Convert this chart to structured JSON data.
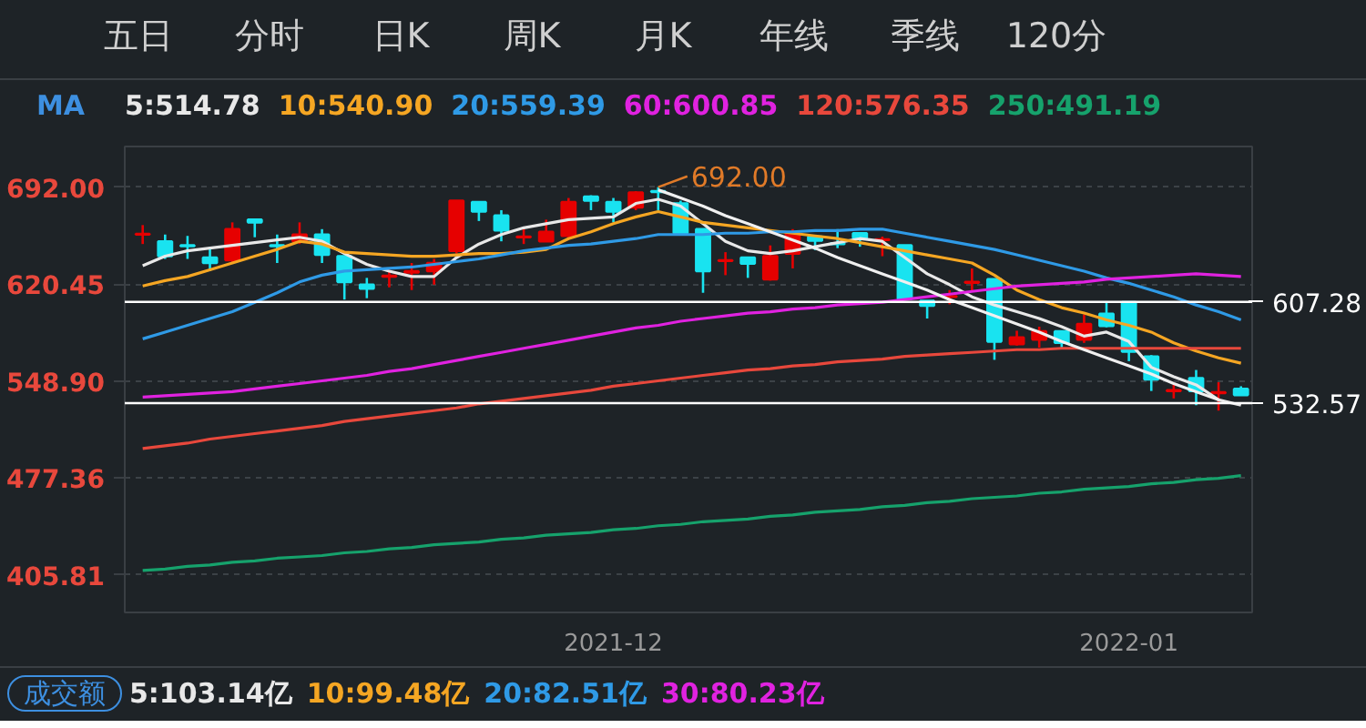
{
  "chart_data": {
    "type": "candlestick",
    "categories": [
      null,
      null,
      null,
      null,
      null,
      null,
      null,
      null,
      null,
      null,
      null,
      null,
      null,
      null,
      null,
      null,
      null,
      null,
      null,
      null,
      null,
      "2021-12",
      null,
      null,
      null,
      null,
      null,
      null,
      null,
      null,
      null,
      null,
      null,
      null,
      null,
      null,
      null,
      null,
      null,
      null,
      null,
      null,
      null,
      null,
      "2022-01",
      null,
      null,
      null,
      null,
      null
    ],
    "ohlc": [
      [
        657,
        664,
        650,
        657.5
      ],
      [
        652,
        657,
        639,
        641
      ],
      [
        649,
        656,
        639,
        648.5
      ],
      [
        640,
        648,
        630,
        636
      ],
      [
        638,
        666,
        636,
        661
      ],
      [
        668,
        668,
        655,
        666
      ],
      [
        649,
        657,
        636,
        648.5
      ],
      [
        652,
        666,
        650,
        657
      ],
      [
        657,
        661,
        636,
        642
      ],
      [
        641,
        641,
        609,
        622
      ],
      [
        620,
        625,
        610,
        617
      ],
      [
        626,
        632,
        618,
        626.5
      ],
      [
        629,
        636,
        616,
        630
      ],
      [
        630,
        639,
        620,
        636
      ],
      [
        645,
        682,
        643,
        682
      ],
      [
        681,
        681,
        667,
        674
      ],
      [
        671,
        675,
        652,
        660
      ],
      [
        655,
        661,
        650,
        655.5
      ],
      [
        652,
        668,
        652,
        659
      ],
      [
        656,
        684,
        655,
        681
      ],
      [
        685,
        686,
        675,
        682
      ],
      [
        681,
        684,
        666,
        674
      ],
      [
        677,
        689,
        675,
        688
      ],
      [
        689,
        692,
        675,
        688.5
      ],
      [
        680,
        682,
        657,
        658
      ],
      [
        661,
        661,
        614,
        630
      ],
      [
        637.5,
        644,
        627,
        638
      ],
      [
        640,
        640,
        625,
        635.5
      ],
      [
        624,
        649,
        623,
        641
      ],
      [
        643,
        661,
        632,
        658
      ],
      [
        655.5,
        655.5,
        645.5,
        652.5
      ],
      [
        650.5,
        661,
        647,
        650
      ],
      [
        658,
        658,
        648,
        654.5
      ],
      [
        653,
        655.5,
        641,
        653.5
      ],
      [
        649,
        649,
        609,
        609.5
      ],
      [
        608,
        608,
        595,
        604.5
      ],
      [
        611,
        616,
        605.5,
        611.5
      ],
      [
        621.5,
        632,
        614.5,
        622
      ],
      [
        624,
        624,
        564.5,
        578
      ],
      [
        576,
        586,
        575,
        581
      ],
      [
        579.5,
        589,
        573.5,
        585.5
      ],
      [
        585.5,
        586,
        572.5,
        577
      ],
      [
        579.5,
        598,
        577,
        591
      ],
      [
        598.5,
        607,
        588.5,
        589.5
      ],
      [
        607,
        607,
        563.5,
        570.5
      ],
      [
        567,
        568,
        541.5,
        550
      ],
      [
        541.5,
        546,
        536,
        542
      ],
      [
        551,
        557,
        531,
        541.5
      ],
      [
        540,
        548,
        527,
        540.5
      ],
      [
        543,
        545,
        538,
        538.5
      ]
    ],
    "colors": [
      "#e60000",
      "#19e3f0",
      "#19e3f0",
      "#19e3f0",
      "#e60000",
      "#19e3f0",
      "#19e3f0",
      "#e60000",
      "#19e3f0",
      "#19e3f0",
      "#19e3f0",
      "#e60000",
      "#e60000",
      "#e60000",
      "#e60000",
      "#19e3f0",
      "#19e3f0",
      "#e60000",
      "#e60000",
      "#e60000",
      "#19e3f0",
      "#19e3f0",
      "#e60000",
      "#19e3f0",
      "#19e3f0",
      "#19e3f0",
      "#e60000",
      "#19e3f0",
      "#e60000",
      "#e60000",
      "#19e3f0",
      "#19e3f0",
      "#19e3f0",
      "#e60000",
      "#19e3f0",
      "#19e3f0",
      "#e60000",
      "#e60000",
      "#19e3f0",
      "#e60000",
      "#e60000",
      "#19e3f0",
      "#e60000",
      "#19e3f0",
      "#19e3f0",
      "#19e3f0",
      "#e60000",
      "#19e3f0",
      "#e60000",
      "#19e3f0"
    ],
    "series": [
      {
        "type": "line",
        "name": "5:514.78",
        "color": "#e8e8e8",
        "values": [
          634,
          641,
          645,
          647,
          649,
          651,
          653,
          655,
          652,
          643,
          635,
          630,
          626,
          626,
          640,
          650,
          657,
          662,
          665,
          668,
          669,
          670,
          680,
          683,
          678,
          665,
          652,
          645,
          643,
          645,
          648,
          651,
          654,
          652,
          640,
          628,
          620,
          611,
          605,
          600,
          595,
          589,
          582,
          585,
          578,
          559,
          552,
          546,
          535,
          531
        ]
      },
      {
        "type": "line",
        "name": "10:540.90",
        "color": "#f5a623",
        "values": [
          619,
          623,
          626,
          631,
          636,
          641,
          646,
          652,
          650,
          644,
          643,
          642,
          641,
          641,
          642,
          643,
          643,
          644,
          646,
          654,
          659,
          665,
          670,
          674,
          670,
          666,
          664,
          662,
          660,
          658,
          656,
          654,
          651,
          648,
          645,
          642,
          639,
          636,
          627,
          616,
          609,
          603,
          599,
          594,
          590,
          585,
          577,
          571,
          566,
          562
        ]
      },
      {
        "type": "line",
        "name": "20:559.39",
        "color": "#2f9ae6",
        "values": [
          580,
          585,
          590,
          595,
          600,
          607,
          614,
          622,
          627,
          630,
          631,
          632,
          633,
          635,
          637,
          639,
          642,
          645,
          647,
          649,
          650,
          652,
          654,
          657,
          657,
          657,
          658,
          658,
          659,
          659,
          660,
          660,
          661,
          661,
          658,
          655,
          652,
          649,
          646,
          642,
          638,
          634,
          630,
          625,
          621,
          616,
          611,
          605,
          600,
          594
        ]
      },
      {
        "type": "line",
        "name": "60:600.85",
        "color": "#e022e0",
        "values": [
          537,
          538,
          539,
          540,
          541,
          543,
          545,
          547,
          549,
          551,
          553,
          556,
          558,
          561,
          564,
          567,
          570,
          573,
          576,
          579,
          582,
          585,
          588,
          590,
          593,
          595,
          597,
          599,
          600,
          602,
          603,
          605,
          606,
          607,
          609,
          611,
          613,
          615,
          617,
          619,
          620,
          621,
          622,
          624,
          625,
          626,
          627,
          628,
          627,
          626
        ]
      },
      {
        "type": "line",
        "name": "120:576.35",
        "color": "#e8483c",
        "values": [
          499,
          501,
          503,
          506,
          508,
          510,
          512,
          514,
          516,
          519,
          521,
          523,
          525,
          527,
          529,
          532,
          534,
          536,
          538,
          540,
          542,
          545,
          547,
          549,
          551,
          553,
          555,
          557,
          558,
          560,
          561,
          563,
          564,
          565,
          567,
          568,
          569,
          570,
          571,
          572,
          572,
          573,
          573,
          573,
          573,
          573,
          573,
          573,
          573,
          573
        ]
      },
      {
        "type": "line",
        "name": "250:491.19",
        "color": "#16a26c",
        "values": [
          409,
          410,
          412,
          413,
          415,
          416,
          418,
          419,
          420,
          422,
          423,
          425,
          426,
          428,
          429,
          430,
          432,
          433,
          435,
          436,
          437,
          439,
          440,
          442,
          443,
          445,
          446,
          447,
          449,
          450,
          452,
          453,
          454,
          456,
          457,
          459,
          460,
          462,
          463,
          464,
          466,
          467,
          469,
          470,
          471,
          473,
          474,
          476,
          477,
          479
        ]
      },
      {
        "type": "line",
        "color": "#f0f0f0",
        "values": [
          null,
          null,
          null,
          null,
          null,
          null,
          null,
          null,
          null,
          null,
          null,
          null,
          null,
          null,
          null,
          null,
          null,
          null,
          null,
          null,
          null,
          null,
          null,
          690,
          684,
          678,
          671,
          665,
          659,
          653,
          647,
          640,
          634,
          628,
          622,
          616,
          609,
          603,
          597,
          591,
          585,
          578,
          572,
          566,
          560,
          554,
          547,
          541,
          535,
          null
        ]
      }
    ],
    "ref_lines": [
      {
        "axis": "y",
        "value": 607.28,
        "label": "607.28",
        "color": "#ffffff"
      },
      {
        "axis": "y",
        "value": 532.57,
        "label": "532.57",
        "color": "#ffffff"
      }
    ],
    "ylim": [
      378,
      722
    ],
    "yticks": [
      {
        "value": 692,
        "label": "692.00"
      },
      {
        "value": 620.45,
        "label": "620.45"
      },
      {
        "value": 548.9,
        "label": "548.90"
      },
      {
        "value": 477.36,
        "label": "477.36"
      },
      {
        "value": 405.81,
        "label": "405.81"
      }
    ],
    "grid": "y",
    "legend": "top",
    "legend_title": "MA",
    "annotations": [
      "五日",
      "分时",
      "日K",
      "周K",
      "月K",
      "年线",
      "季线",
      "120分",
      "692.00",
      "成交额",
      "5:103.14亿",
      "10:99.48亿",
      "20:82.51亿",
      "30:80.23亿"
    ]
  }
}
